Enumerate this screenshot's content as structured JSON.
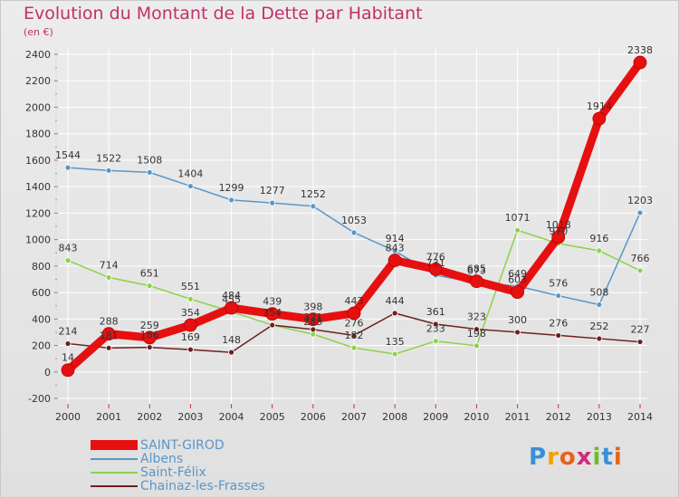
{
  "header": {
    "title": "Evolution du Montant de la Dette par Habitant",
    "unit": "(en €)"
  },
  "logo": {
    "text": "Proxiti"
  },
  "colors": {
    "SAINT-GIROD": "#e61010",
    "Albens": "#5a96c8",
    "Saint-Félix": "#8cd24a",
    "Chainaz-les-Frasses": "#6e2020",
    "title": "#c0306a",
    "grid": "#ffffff"
  },
  "chart_data": {
    "type": "line",
    "title": "Evolution du Montant de la Dette par Habitant",
    "ylabel": "(en €)",
    "xlabel": "",
    "x": [
      2000,
      2001,
      2002,
      2003,
      2004,
      2005,
      2006,
      2007,
      2008,
      2009,
      2010,
      2011,
      2012,
      2013,
      2014
    ],
    "ylim": [
      -200,
      2400
    ],
    "yticks": [
      -200,
      0,
      200,
      400,
      600,
      800,
      1000,
      1200,
      1400,
      1600,
      1800,
      2000,
      2200,
      2400
    ],
    "grid": true,
    "legend": "bottom-left",
    "series": [
      {
        "name": "SAINT-GIROD",
        "values": [
          14,
          288,
          259,
          354,
          484,
          439,
          398,
          443,
          843,
          776,
          685,
          603,
          1018,
          1914,
          2338
        ]
      },
      {
        "name": "Albens",
        "values": [
          1544,
          1522,
          1508,
          1404,
          1299,
          1277,
          1252,
          1053,
          914,
          731,
          673,
          649,
          576,
          508,
          1203
        ]
      },
      {
        "name": "Saint-Félix",
        "values": [
          843,
          714,
          651,
          551,
          455,
          354,
          285,
          182,
          135,
          233,
          198,
          1071,
          970,
          916,
          766
        ]
      },
      {
        "name": "Chainaz-les-Frasses",
        "values": [
          214,
          181,
          186,
          169,
          148,
          354,
          321,
          276,
          444,
          361,
          323,
          300,
          276,
          252,
          227
        ]
      }
    ]
  }
}
